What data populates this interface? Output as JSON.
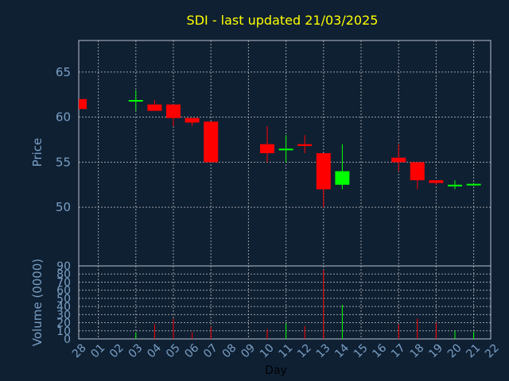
{
  "chart_data": {
    "type": "candlestick",
    "title": "SDI - last updated 21/03/2025",
    "xlabel": "Day",
    "price_panel": {
      "ylabel": "Price",
      "ylim": [
        43.5,
        68.5
      ],
      "yticks": [
        50,
        55,
        60,
        65
      ]
    },
    "volume_panel": {
      "ylabel": "Volume (0000)",
      "ylim": [
        0,
        90
      ],
      "yticks": [
        0,
        10,
        20,
        30,
        40,
        50,
        60,
        70,
        80,
        90
      ]
    },
    "x_ticks": [
      "28",
      "01",
      "02",
      "03",
      "04",
      "05",
      "06",
      "07",
      "08",
      "09",
      "10",
      "11",
      "12",
      "13",
      "14",
      "15",
      "16",
      "17",
      "18",
      "19",
      "20",
      "21",
      "22"
    ],
    "grid": true,
    "colors": {
      "up": "#00ff00",
      "down": "#ff0000",
      "background": "#0f2033",
      "title": "#ffff00",
      "axis_text": "#7a9fc4"
    },
    "candles": [
      {
        "x": "28",
        "open": 62.0,
        "high": 62.0,
        "low": 60.9,
        "close": 60.9,
        "volume": 0
      },
      {
        "x": "03",
        "open": 61.9,
        "high": 63.0,
        "low": 60.7,
        "close": 61.9,
        "volume": 8
      },
      {
        "x": "04",
        "open": 61.4,
        "high": 61.9,
        "low": 60.7,
        "close": 60.7,
        "volume": 18
      },
      {
        "x": "05",
        "open": 61.4,
        "high": 61.4,
        "low": 59.0,
        "close": 59.9,
        "volume": 25
      },
      {
        "x": "06",
        "open": 59.9,
        "high": 59.9,
        "low": 59.0,
        "close": 59.4,
        "volume": 8
      },
      {
        "x": "07",
        "open": 59.5,
        "high": 59.5,
        "low": 55.0,
        "close": 55.0,
        "volume": 15
      },
      {
        "x": "10",
        "open": 57.0,
        "high": 59.0,
        "low": 55.0,
        "close": 56.0,
        "volume": 12
      },
      {
        "x": "11",
        "open": 56.4,
        "high": 58.0,
        "low": 55.0,
        "close": 56.5,
        "volume": 19
      },
      {
        "x": "12",
        "open": 57.0,
        "high": 58.0,
        "low": 56.0,
        "close": 56.8,
        "volume": 16
      },
      {
        "x": "13",
        "open": 56.0,
        "high": 56.0,
        "low": 50.0,
        "close": 52.0,
        "volume": 85
      },
      {
        "x": "14",
        "open": 52.5,
        "high": 57.0,
        "low": 52.0,
        "close": 54.0,
        "volume": 42
      },
      {
        "x": "17",
        "open": 55.5,
        "high": 57.0,
        "low": 54.0,
        "close": 55.0,
        "volume": 18
      },
      {
        "x": "18",
        "open": 55.0,
        "high": 55.0,
        "low": 52.0,
        "close": 53.0,
        "volume": 25
      },
      {
        "x": "19",
        "open": 53.0,
        "high": 53.0,
        "low": 52.5,
        "close": 52.7,
        "volume": 20
      },
      {
        "x": "20",
        "open": 52.5,
        "high": 53.0,
        "low": 52.0,
        "close": 52.5,
        "volume": 10
      },
      {
        "x": "21",
        "open": 52.5,
        "high": 52.7,
        "low": 52.4,
        "close": 52.6,
        "volume": 9
      }
    ]
  }
}
